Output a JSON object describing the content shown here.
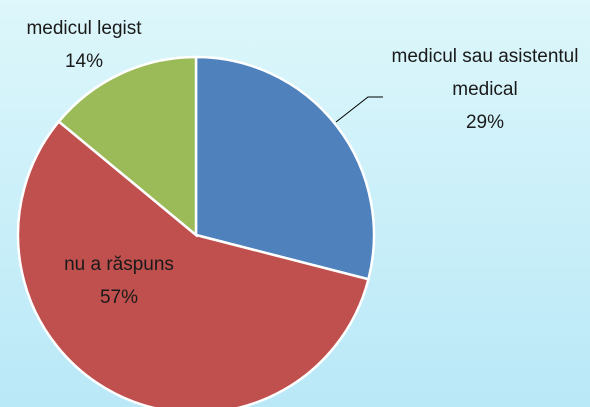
{
  "chart_data": {
    "type": "pie",
    "categories": [
      "medicul sau asistentul medical",
      "nu a răspuns",
      "medicul legist"
    ],
    "values": [
      29,
      57,
      14
    ],
    "value_labels": [
      "29%",
      "57%",
      "14%"
    ],
    "colors": [
      "#4f81bd",
      "#c0504d",
      "#9bbb59"
    ]
  }
}
